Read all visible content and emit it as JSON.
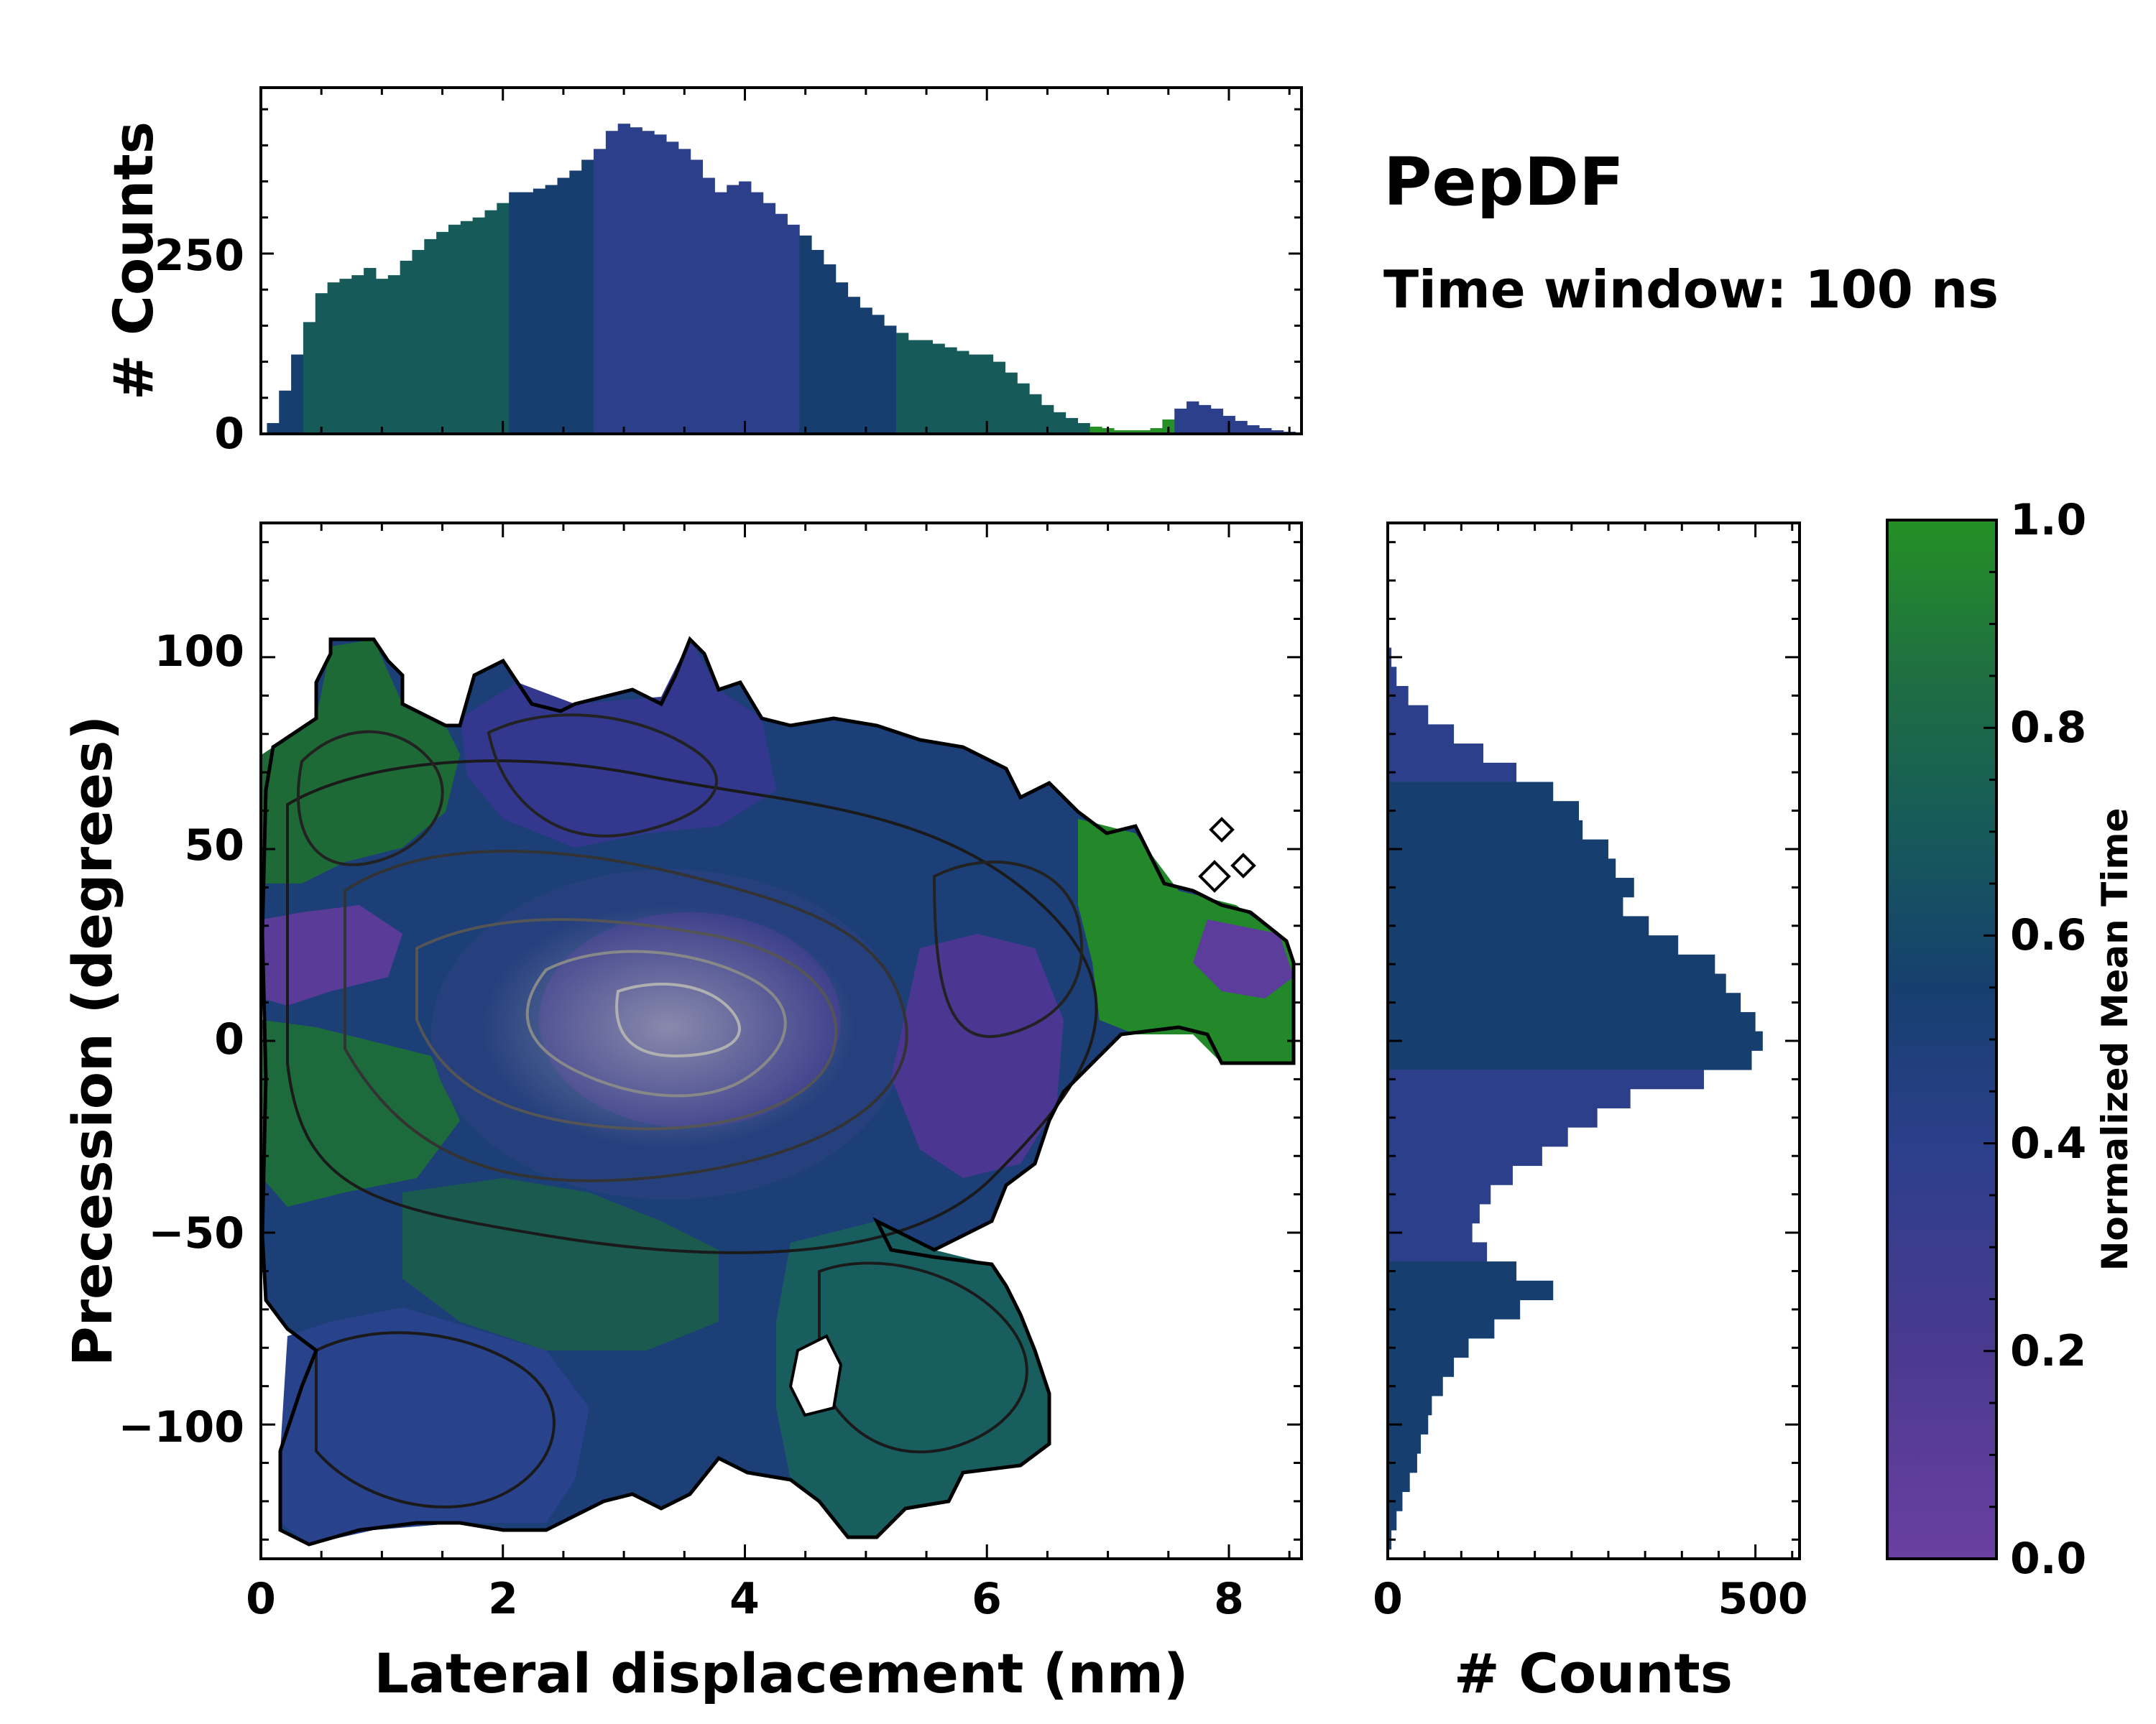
{
  "chart_data": [
    {
      "id": "top_histogram",
      "type": "bar",
      "ylabel": "# Counts",
      "xlim": [
        0,
        8.6
      ],
      "ylim": [
        0,
        480
      ],
      "yticks": [
        0,
        250
      ],
      "x": [
        0.1,
        0.2,
        0.3,
        0.4,
        0.5,
        0.6,
        0.7,
        0.8,
        0.9,
        1.0,
        1.1,
        1.2,
        1.3,
        1.4,
        1.5,
        1.6,
        1.7,
        1.8,
        1.9,
        2.0,
        2.1,
        2.2,
        2.3,
        2.4,
        2.5,
        2.6,
        2.7,
        2.8,
        2.9,
        3.0,
        3.1,
        3.2,
        3.3,
        3.4,
        3.5,
        3.6,
        3.7,
        3.8,
        3.9,
        4.0,
        4.1,
        4.2,
        4.3,
        4.4,
        4.5,
        4.6,
        4.7,
        4.8,
        4.9,
        5.0,
        5.1,
        5.2,
        5.3,
        5.4,
        5.5,
        5.6,
        5.7,
        5.8,
        5.9,
        6.0,
        6.1,
        6.2,
        6.3,
        6.4,
        6.5,
        6.6,
        6.7,
        6.8,
        6.9,
        7.0,
        7.1,
        7.2,
        7.3,
        7.4,
        7.5,
        7.6,
        7.7,
        7.8,
        7.9,
        8.0,
        8.1,
        8.2,
        8.3,
        8.4,
        8.5
      ],
      "values": [
        15,
        60,
        110,
        155,
        195,
        210,
        215,
        220,
        230,
        215,
        220,
        240,
        255,
        270,
        280,
        290,
        295,
        300,
        310,
        320,
        335,
        335,
        340,
        345,
        355,
        365,
        380,
        395,
        420,
        430,
        425,
        420,
        415,
        405,
        395,
        380,
        355,
        335,
        345,
        350,
        335,
        320,
        305,
        290,
        275,
        255,
        235,
        210,
        190,
        175,
        165,
        150,
        140,
        130,
        130,
        125,
        120,
        115,
        110,
        110,
        100,
        85,
        70,
        55,
        40,
        30,
        22,
        15,
        10,
        8,
        5,
        5,
        5,
        8,
        20,
        35,
        45,
        40,
        35,
        25,
        18,
        12,
        8,
        5,
        3
      ]
    },
    {
      "id": "joint_heatmap",
      "type": "heatmap",
      "xlabel": "Lateral displacement (nm)",
      "ylabel": "Precession (degrees)",
      "xlim": [
        0,
        8.6
      ],
      "ylim": [
        -135,
        135
      ],
      "xticks": [
        0,
        2,
        4,
        6,
        8
      ],
      "yticks": [
        100,
        50,
        0,
        -50,
        -100
      ],
      "color_variable": "Normalized Mean Time",
      "regions": [
        {
          "name": "upper-left green lobe",
          "x": [
            0,
            2
          ],
          "y": [
            10,
            100
          ],
          "value": 0.85
        },
        {
          "name": "left purple band",
          "x": [
            0,
            1
          ],
          "y": [
            10,
            35
          ],
          "value": 0.15
        },
        {
          "name": "upper-middle purple lobe",
          "x": [
            2,
            4.5
          ],
          "y": [
            40,
            100
          ],
          "value": 0.3
        },
        {
          "name": "central dense core",
          "x": [
            2,
            5
          ],
          "y": [
            -40,
            40
          ],
          "value": 0.45
        },
        {
          "name": "right purple lobe",
          "x": [
            5.5,
            6.8
          ],
          "y": [
            -40,
            30
          ],
          "value": 0.2
        },
        {
          "name": "far-right green lobe",
          "x": [
            6.8,
            8.6
          ],
          "y": [
            -10,
            55
          ],
          "value": 0.95
        },
        {
          "name": "lower-left blue lobe",
          "x": [
            0,
            3
          ],
          "y": [
            -130,
            -60
          ],
          "value": 0.4
        },
        {
          "name": "lower-right teal lobe",
          "x": [
            4.5,
            6.6
          ],
          "y": [
            -120,
            -50
          ],
          "value": 0.65
        }
      ]
    },
    {
      "id": "right_histogram",
      "type": "bar",
      "orientation": "horizontal",
      "xlabel": "# Counts",
      "xlim": [
        0,
        560
      ],
      "xticks": [
        0,
        500
      ],
      "ylim": [
        -135,
        135
      ],
      "y": [
        100,
        95,
        90,
        85,
        80,
        75,
        70,
        65,
        60,
        55,
        50,
        45,
        40,
        35,
        30,
        25,
        20,
        15,
        10,
        5,
        0,
        -5,
        -10,
        -15,
        -20,
        -25,
        -30,
        -35,
        -40,
        -45,
        -50,
        -55,
        -60,
        -65,
        -70,
        -75,
        -80,
        -85,
        -90,
        -95,
        -100,
        -105,
        -110,
        -115,
        -120,
        -125,
        -130
      ],
      "values": [
        5,
        12,
        28,
        55,
        90,
        130,
        175,
        225,
        260,
        265,
        300,
        310,
        335,
        320,
        355,
        395,
        445,
        460,
        480,
        500,
        510,
        495,
        430,
        330,
        285,
        245,
        210,
        170,
        140,
        125,
        115,
        135,
        175,
        225,
        180,
        145,
        110,
        90,
        75,
        60,
        55,
        45,
        40,
        30,
        20,
        12,
        5
      ]
    }
  ],
  "title": "PepDF",
  "subtitle": "Time window: 100 ns",
  "colorbar": {
    "label": "Normalized Mean Time",
    "range": [
      0.0,
      1.0
    ],
    "ticks": [
      "0.0",
      "0.2",
      "0.4",
      "0.6",
      "0.8",
      "1.0"
    ],
    "colors": [
      "#6a3fa0",
      "#4a3a8f",
      "#2b3f8a",
      "#163f6f",
      "#165a5a",
      "#1f7a3c",
      "#249025"
    ]
  },
  "labels": {
    "top_ylabel": "# Counts",
    "top_tick_0": "0",
    "top_tick_250": "250",
    "main_xlabel": "Lateral displacement (nm)",
    "main_ylabel": "Precession (degrees)",
    "main_x_0": "0",
    "main_x_2": "2",
    "main_x_4": "4",
    "main_x_6": "6",
    "main_x_8": "8",
    "main_y_100": "100",
    "main_y_50": "50",
    "main_y_0": "0",
    "main_y_m50": "−50",
    "main_y_m100": "−100",
    "right_xlabel": "# Counts",
    "right_x_0": "0",
    "right_x_500": "500"
  }
}
